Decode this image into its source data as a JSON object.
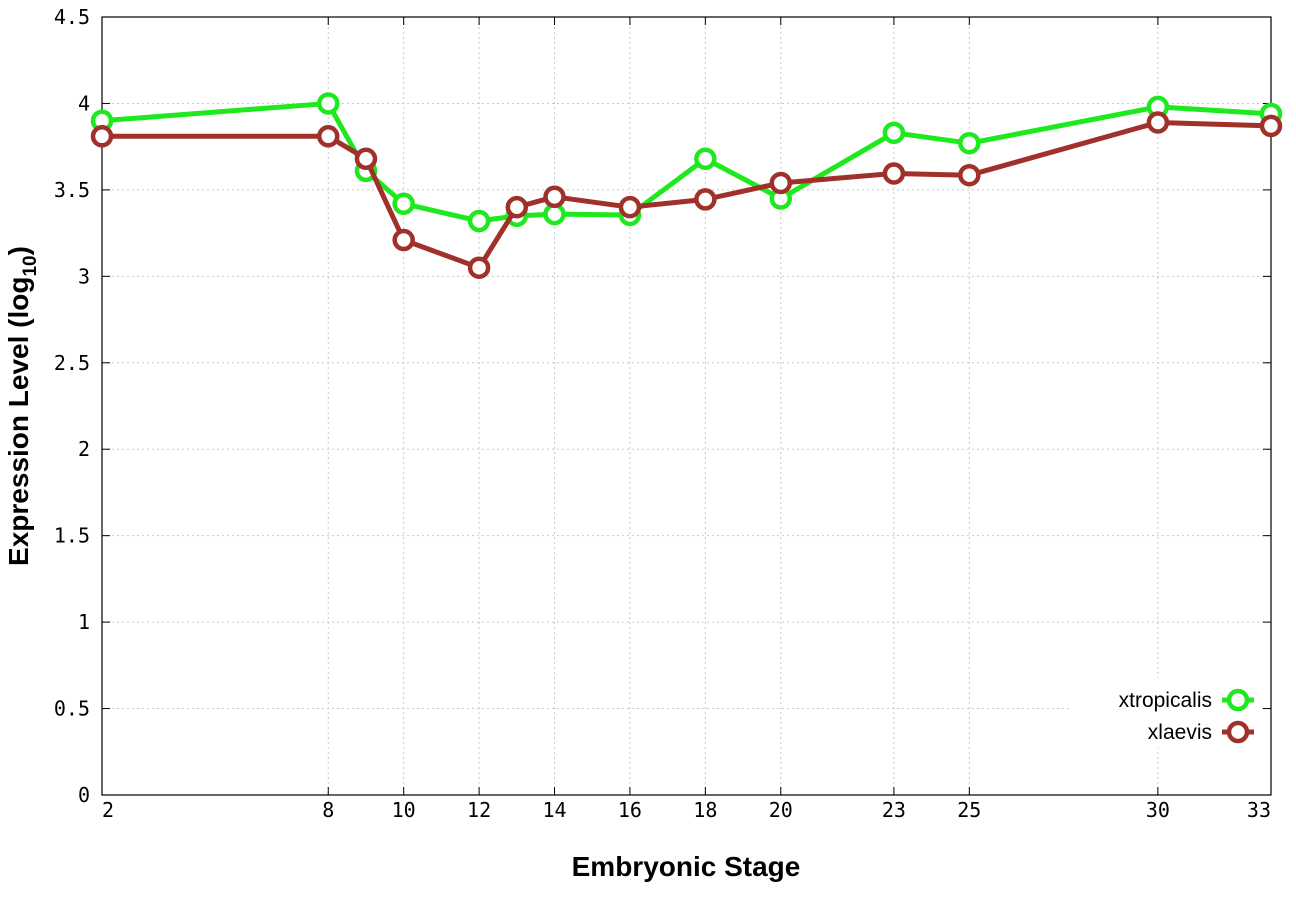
{
  "chart_data": {
    "type": "line",
    "xlabel": "Embryonic Stage",
    "ylabel": "Expression Level (log",
    "ylabel_subscript": "10",
    "ylabel_suffix": ")",
    "ylim": [
      0,
      4.5
    ],
    "y_ticks": [
      "0",
      "0.5",
      "1",
      "1.5",
      "2",
      "2.5",
      "3",
      "3.5",
      "4",
      "4.5"
    ],
    "y_tick_values": [
      0,
      0.5,
      1,
      1.5,
      2,
      2.5,
      3,
      3.5,
      4,
      4.5
    ],
    "x_ticks": [
      "2",
      "8",
      "10",
      "12",
      "14",
      "16",
      "18",
      "20",
      "23",
      "25",
      "30",
      "33"
    ],
    "x_tick_values": [
      2,
      8,
      10,
      12,
      14,
      16,
      18,
      20,
      23,
      25,
      30,
      33
    ],
    "grid": true,
    "legend_position": "bottom-right",
    "x": [
      2,
      8,
      9,
      10,
      12,
      13,
      14,
      16,
      18,
      20,
      23,
      25,
      30,
      33
    ],
    "series": [
      {
        "name": "xtropicalis",
        "color": "#1ee81e",
        "values": [
          3.9,
          4.0,
          3.61,
          3.42,
          3.32,
          3.35,
          3.36,
          3.355,
          3.68,
          3.45,
          3.83,
          3.77,
          3.98,
          3.94
        ]
      },
      {
        "name": "xlaevis",
        "color": "#a0302a",
        "values": [
          3.81,
          3.81,
          3.68,
          3.21,
          3.05,
          3.4,
          3.46,
          3.4,
          3.445,
          3.54,
          3.595,
          3.585,
          3.89,
          3.87
        ]
      }
    ]
  }
}
